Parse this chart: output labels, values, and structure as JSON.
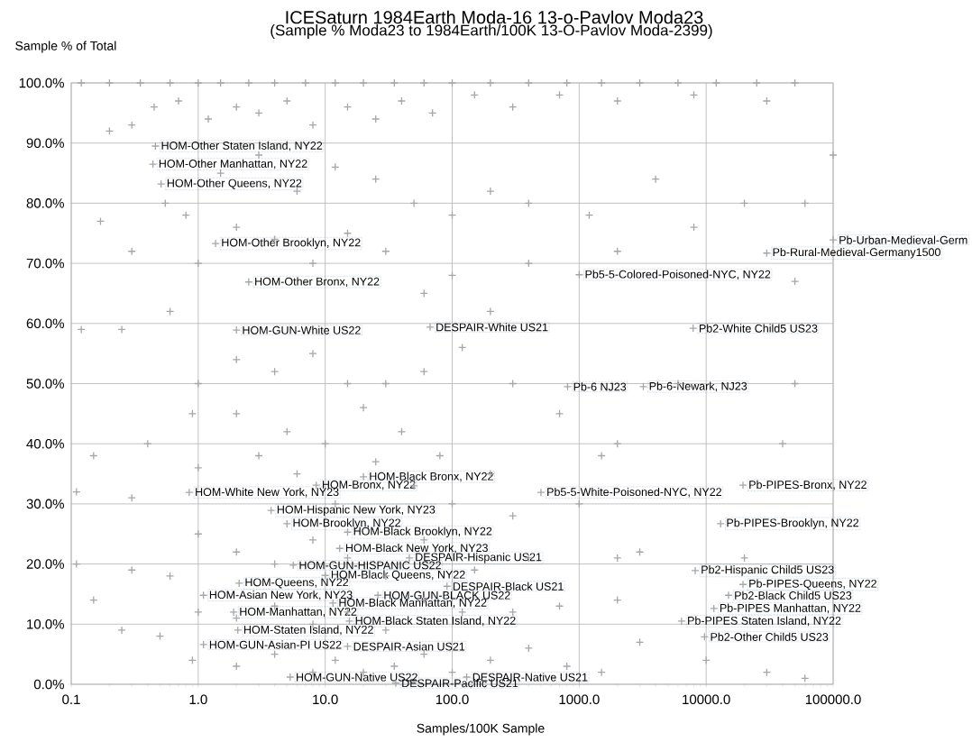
{
  "chart_data": {
    "type": "scatter",
    "title": "ICESaturn 1984Earth Moda-16 13-o-Pavlov Moda23",
    "subtitle": "(Sample % Moda23 to 1984Earth/100K 13-O-Pavlov Moda-2399)",
    "xlabel": "Samples/100K Sample",
    "ylabel": "Sample % of Total",
    "log": "x",
    "grid": true,
    "marker": "cross",
    "color": "#a6a6a6",
    "xlim": [
      0.1,
      100000
    ],
    "ylim": [
      0,
      100
    ],
    "xticks": [
      0.1,
      {
        "value": 1,
        "label": "1.0"
      },
      {
        "value": 10,
        "label": "10.0"
      },
      {
        "value": 100,
        "label": "100.0"
      },
      {
        "value": 1000,
        "label": "1000.0"
      },
      {
        "value": 10000,
        "label": "10000.0"
      },
      {
        "value": 100000,
        "label": "100000.0"
      }
    ],
    "yticks": [
      {
        "value": 0,
        "label": "0.0%"
      },
      {
        "value": 10,
        "label": "10.0%"
      },
      {
        "value": 20,
        "label": "20.0%"
      },
      {
        "value": 30,
        "label": "30.0%"
      },
      {
        "value": 40,
        "label": "40.0%"
      },
      {
        "value": 50,
        "label": "50.0%"
      },
      {
        "value": 60,
        "label": "60.0%"
      },
      {
        "value": 70,
        "label": "70.0%"
      },
      {
        "value": 80,
        "label": "80.0%"
      },
      {
        "value": 90,
        "label": "90.0%"
      },
      {
        "value": 100,
        "label": "100.0%"
      }
    ],
    "x": [
      0.46,
      0.44,
      0.51,
      1.37,
      2.5,
      2.0,
      67,
      1000,
      100000,
      30000,
      7900,
      810,
      3200,
      19500,
      500,
      13000,
      8200,
      19500,
      15000,
      11500,
      6400,
      9700,
      20,
      8.5,
      0.85,
      3.75,
      5.0,
      15,
      13,
      46,
      5.6,
      10,
      2.1,
      91,
      1.1,
      26,
      11.5,
      1.9,
      15.5,
      2.05,
      1.1,
      15,
      5.3,
      36,
      130,
      0.12,
      0.2,
      0.35,
      0.6,
      1,
      1.5,
      2.5,
      4,
      7,
      12,
      20,
      35,
      60,
      100,
      200,
      400,
      800,
      1500,
      3000,
      6000,
      12000,
      25000,
      50000,
      0.2,
      0.3,
      0.45,
      0.7,
      1.2,
      2,
      3,
      5,
      8,
      15,
      25,
      40,
      70,
      150,
      300,
      700,
      2000,
      8000,
      30000,
      100000,
      0.17,
      0.3,
      0.55,
      0.8,
      1.5,
      3,
      6,
      12,
      25,
      50,
      100,
      200,
      400,
      1200,
      4000,
      20000,
      60000,
      0.12,
      0.25,
      0.6,
      1,
      2,
      4,
      8,
      15,
      30,
      60,
      100,
      200,
      400,
      2000,
      8000,
      50000,
      1,
      2,
      4,
      8,
      15,
      30,
      60,
      120,
      300,
      700,
      2000,
      6000,
      50000,
      0.15,
      0.4,
      0.9,
      2,
      5,
      10,
      20,
      40,
      80,
      200,
      1500,
      40000,
      0.11,
      0.3,
      1,
      3,
      6,
      12,
      25,
      50,
      100,
      300,
      1000,
      3000,
      0.11,
      0.3,
      0.6,
      1,
      2,
      4,
      8,
      15,
      30,
      60,
      150,
      400,
      2000,
      20000,
      0.15,
      0.25,
      0.5,
      1,
      2,
      4,
      8,
      15,
      30,
      60,
      120,
      300,
      700,
      2000,
      0.9,
      2,
      4,
      8,
      12,
      20,
      35,
      60,
      100,
      200,
      400,
      800,
      1500,
      3000,
      10000,
      30000,
      60000
    ],
    "values": [
      89.5,
      86.5,
      83.2,
      73.3,
      66.9,
      58.9,
      59.4,
      68.1,
      73.9,
      71.7,
      59.2,
      49.5,
      49.5,
      33.1,
      31.9,
      26.7,
      18.9,
      16.6,
      14.8,
      12.6,
      10.5,
      7.9,
      34.5,
      33.1,
      31.9,
      28.9,
      26.7,
      25.3,
      22.6,
      21.0,
      19.8,
      18.1,
      16.8,
      16.3,
      14.8,
      14.8,
      13.5,
      12.0,
      10.5,
      9.0,
      6.6,
      6.3,
      1.2,
      0.2,
      1.2,
      100,
      100,
      100,
      100,
      100,
      100,
      100,
      100,
      100,
      100,
      100,
      100,
      100,
      100,
      100,
      100,
      100,
      100,
      100,
      100,
      100,
      100,
      100,
      92,
      93,
      96,
      97,
      94,
      96,
      95,
      97,
      93,
      96,
      94,
      97,
      95,
      98,
      96,
      98,
      97,
      98,
      97,
      88,
      77,
      72,
      80,
      78,
      85,
      88,
      82,
      86,
      84,
      80,
      78,
      82,
      80,
      78,
      84,
      80,
      80,
      59,
      59,
      62,
      70,
      76,
      74,
      70,
      75,
      72,
      65,
      68,
      62,
      70,
      72,
      76,
      67,
      50,
      54,
      52,
      55,
      50,
      50,
      52,
      56,
      50,
      45,
      40,
      50,
      50,
      38,
      40,
      45,
      45,
      42,
      40,
      46,
      42,
      38,
      35,
      38,
      40,
      32,
      31,
      36,
      38,
      35,
      30,
      37,
      33,
      30,
      28,
      30,
      22,
      20,
      19,
      18,
      25,
      22,
      20,
      24,
      21,
      18,
      24,
      19,
      21,
      21,
      21,
      14,
      9,
      8,
      12,
      11,
      13,
      10,
      12,
      9,
      14,
      12,
      12,
      13,
      14,
      4,
      3,
      5,
      2,
      4,
      2,
      3,
      5,
      2,
      4,
      6,
      3,
      2,
      7,
      4,
      2,
      1
    ],
    "annotations": [
      {
        "text": "HOM-Other Staten Island, NY22",
        "x": 0.46,
        "y": 89.5
      },
      {
        "text": "HOM-Other Manhattan, NY22",
        "x": 0.44,
        "y": 86.5
      },
      {
        "text": "HOM-Other Queens, NY22",
        "x": 0.51,
        "y": 83.2
      },
      {
        "text": "HOM-Other Brooklyn, NY22",
        "x": 1.37,
        "y": 73.3
      },
      {
        "text": "HOM-Other Bronx, NY22",
        "x": 2.5,
        "y": 66.9
      },
      {
        "text": "HOM-GUN-White US22",
        "x": 2.0,
        "y": 58.9
      },
      {
        "text": "DESPAIR-White US21",
        "x": 67,
        "y": 59.4
      },
      {
        "text": "Pb5-5-Colored-Poisoned-NYC, NY22",
        "x": 1000,
        "y": 68.1
      },
      {
        "text": "Pb-Urban-Medieval-Germ",
        "x": 100000,
        "y": 73.9
      },
      {
        "text": "Pb-Rural-Medieval-Germany1500",
        "x": 30000,
        "y": 71.7
      },
      {
        "text": "Pb2-White Child5 US23",
        "x": 7900,
        "y": 59.2
      },
      {
        "text": "Pb-6 NJ23",
        "x": 810,
        "y": 49.5
      },
      {
        "text": "Pb-6-Newark, NJ23",
        "x": 3200,
        "y": 49.5
      },
      {
        "text": "Pb-PIPES-Bronx, NY22",
        "x": 19500,
        "y": 33.1
      },
      {
        "text": "Pb5-5-White-Poisoned-NYC, NY22",
        "x": 500,
        "y": 31.9
      },
      {
        "text": "Pb-PIPES-Brooklyn, NY22",
        "x": 13000,
        "y": 26.7
      },
      {
        "text": "Pb2-Hispanic Child5 US23",
        "x": 8200,
        "y": 18.9
      },
      {
        "text": "Pb-PIPES-Queens, NY22",
        "x": 19500,
        "y": 16.6
      },
      {
        "text": "Pb2-Black Child5 US23",
        "x": 15000,
        "y": 14.8
      },
      {
        "text": "Pb-PIPES Manhattan, NY22",
        "x": 11500,
        "y": 12.6
      },
      {
        "text": "Pb-PIPES Staten Island, NY22",
        "x": 6400,
        "y": 10.5
      },
      {
        "text": "Pb2-Other Child5 US23",
        "x": 9700,
        "y": 7.9
      },
      {
        "text": "HOM-Black Bronx, NY22",
        "x": 20,
        "y": 34.5
      },
      {
        "text": "HOM-Bronx, NY22",
        "x": 8.5,
        "y": 33.1
      },
      {
        "text": "HOM-White New York, NY23",
        "x": 0.85,
        "y": 31.9
      },
      {
        "text": "HOM-Hispanic New York, NY23",
        "x": 3.75,
        "y": 28.9
      },
      {
        "text": "HOM-Brooklyn, NY22",
        "x": 5.0,
        "y": 26.7
      },
      {
        "text": "HOM-Black Brooklyn, NY22",
        "x": 15,
        "y": 25.3
      },
      {
        "text": "HOM-Black New York, NY23",
        "x": 13,
        "y": 22.6
      },
      {
        "text": "DESPAIR-Hispanic US21",
        "x": 46,
        "y": 21.0
      },
      {
        "text": "HOM-GUN-HISPANIC US22",
        "x": 5.6,
        "y": 19.8
      },
      {
        "text": "HOM-Black Queens, NY22",
        "x": 10,
        "y": 18.1
      },
      {
        "text": "HOM-Queens, NY22",
        "x": 2.1,
        "y": 16.8
      },
      {
        "text": "DESPAIR-Black US21",
        "x": 91,
        "y": 16.3
      },
      {
        "text": "HOM-Asian New York, NY23",
        "x": 1.1,
        "y": 14.8
      },
      {
        "text": "HOM-GUN-BLACK US22",
        "x": 26,
        "y": 14.8
      },
      {
        "text": "HOM-Black Manhattan, NY22",
        "x": 11.5,
        "y": 13.5
      },
      {
        "text": "HOM-Manhattan, NY22",
        "x": 1.9,
        "y": 12.0
      },
      {
        "text": "HOM-Black Staten Island, NY22",
        "x": 15.5,
        "y": 10.5
      },
      {
        "text": "HOM-Staten Island, NY22",
        "x": 2.05,
        "y": 9.0
      },
      {
        "text": "HOM-GUN-Asian-PI US22",
        "x": 1.1,
        "y": 6.6
      },
      {
        "text": "DESPAIR-Asian US21",
        "x": 15,
        "y": 6.3
      },
      {
        "text": "HOM-GUN-Native US22",
        "x": 5.3,
        "y": 1.2
      },
      {
        "text": "DESPAIR-Pacific US21",
        "x": 36,
        "y": 0.2
      },
      {
        "text": "DESPAIR-Native US21",
        "x": 130,
        "y": 1.2
      }
    ]
  }
}
